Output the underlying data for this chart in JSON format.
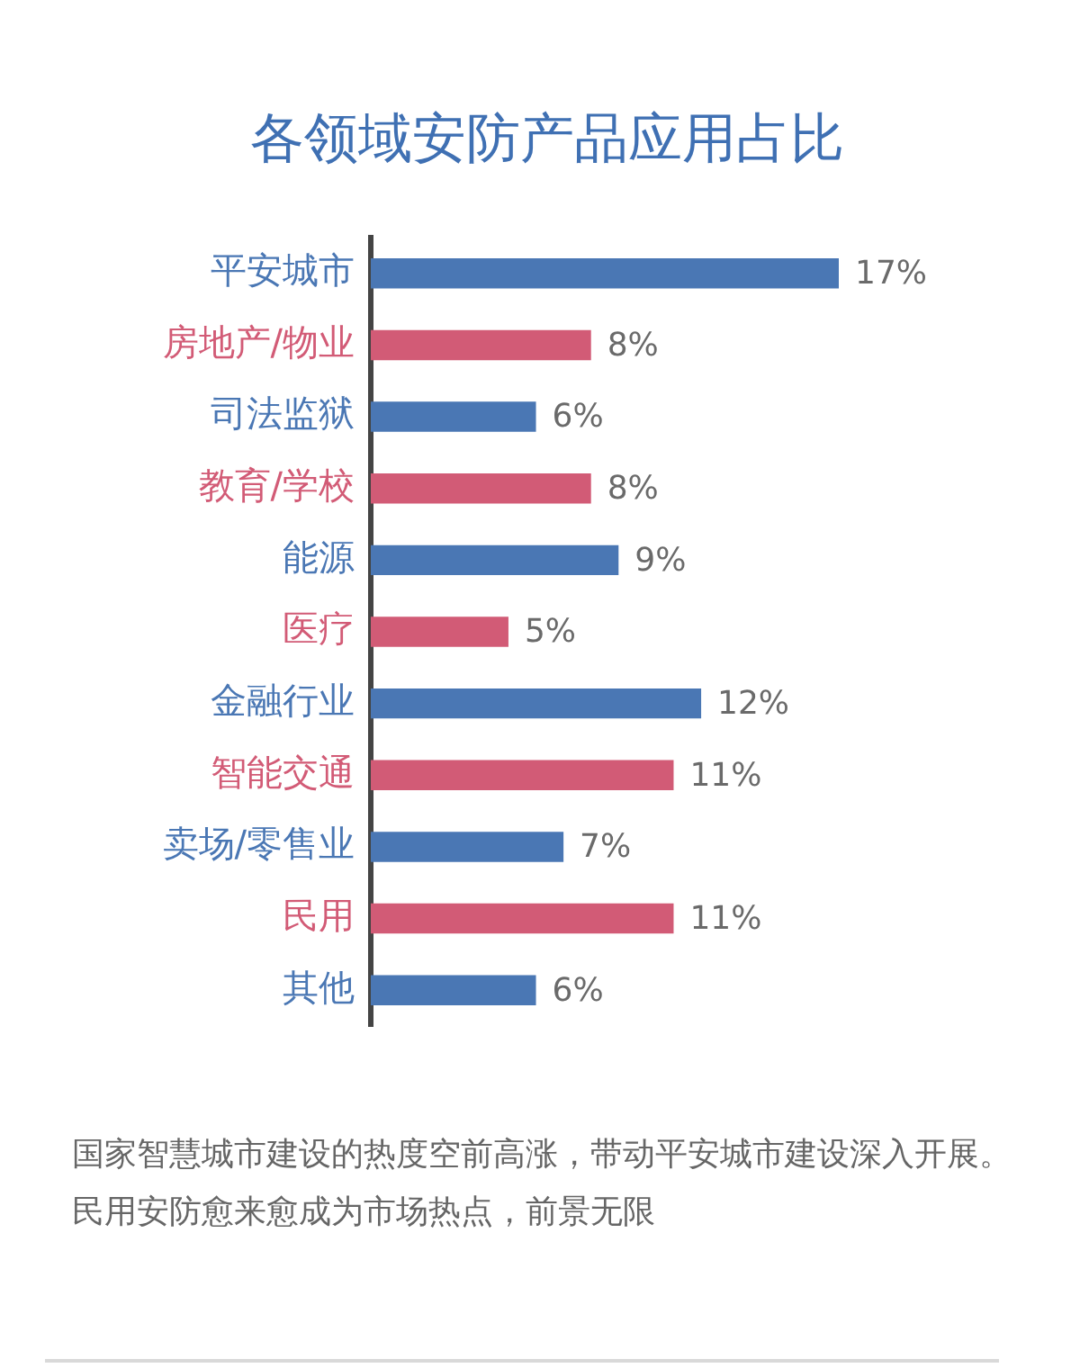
{
  "chart_data": {
    "type": "bar",
    "orientation": "horizontal",
    "title": "各领域安防产品应用占比",
    "categories": [
      "平安城市",
      "房地产/物业",
      "司法监狱",
      "教育/学校",
      "能源",
      "医疗",
      "金融行业",
      "智能交通",
      "卖场/零售业",
      "民用",
      "其他"
    ],
    "values": [
      17,
      8,
      6,
      8,
      9,
      5,
      12,
      11,
      7,
      11,
      6
    ],
    "colors": [
      "#4a77b4",
      "#d25b76",
      "#4a77b4",
      "#d25b76",
      "#4a77b4",
      "#d25b76",
      "#4a77b4",
      "#d25b76",
      "#4a77b4",
      "#d25b76",
      "#4a77b4"
    ],
    "value_labels": [
      "17%",
      "8%",
      "6%",
      "8%",
      "9%",
      "5%",
      "12%",
      "11%",
      "7%",
      "11%",
      "6%"
    ],
    "annotations": [
      "国家智慧城市建设的热度空前高涨，带动平安城市建设深入开展。",
      "民用安防愈来愈成为市场热点，前景无限"
    ],
    "tick_labels": "y",
    "grid": false,
    "legend": false
  }
}
